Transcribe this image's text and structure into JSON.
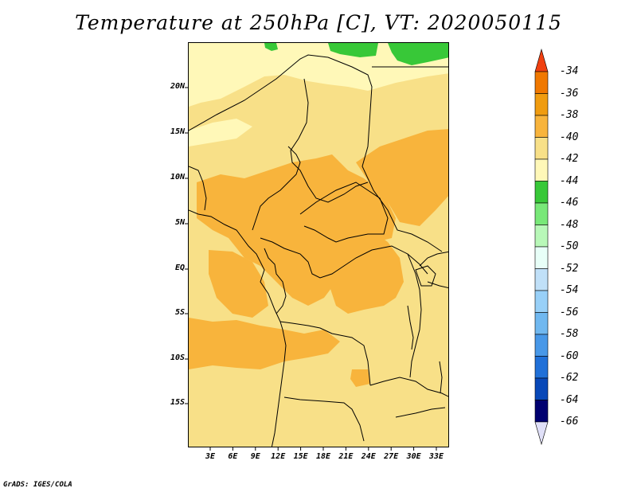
{
  "title": "Temperature at 250hPa [C], VT: 2020050115",
  "credit": "GrADS: IGES/COLA",
  "lat_labels": [
    "20N",
    "15N",
    "10N",
    "5N",
    "EQ",
    "5S",
    "10S",
    "15S"
  ],
  "lon_labels": [
    "3E",
    "6E",
    "9E",
    "12E",
    "15E",
    "18E",
    "21E",
    "24E",
    "27E",
    "30E",
    "33E"
  ],
  "colorbar": {
    "labels": [
      "-34",
      "-36",
      "-38",
      "-40",
      "-42",
      "-44",
      "-46",
      "-48",
      "-50",
      "-52",
      "-54",
      "-56",
      "-58",
      "-60",
      "-62",
      "-64",
      "-66"
    ],
    "colors": [
      "#f04010",
      "#f07800",
      "#f09c10",
      "#f8b43c",
      "#f8e088",
      "#fff8b8",
      "#38c838",
      "#78e878",
      "#b8f8b8",
      "#e8fff8",
      "#c0e0f8",
      "#98d0f8",
      "#70b8f0",
      "#4898e8",
      "#2070d8",
      "#0848b8",
      "#000070",
      "#e0e0f8"
    ]
  },
  "map": {
    "colors": {
      "background": "#f8e088",
      "warm": "#f8b43c",
      "cool": "#fff8b8",
      "green": "#38c838",
      "border": "#000000"
    }
  }
}
